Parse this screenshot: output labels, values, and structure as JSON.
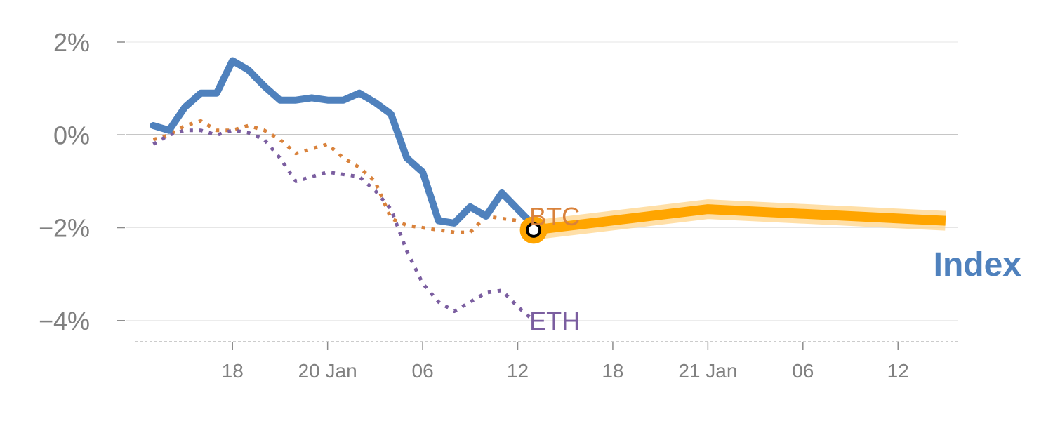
{
  "chart_data": {
    "type": "line",
    "title": "",
    "xlabel": "",
    "ylabel": "",
    "unit": "hour",
    "x_ticks": [
      {
        "x": 18,
        "label": "18"
      },
      {
        "x": 24,
        "label": "20 Jan"
      },
      {
        "x": 30,
        "label": "06"
      },
      {
        "x": 36,
        "label": "12"
      },
      {
        "x": 42,
        "label": "18"
      },
      {
        "x": 48,
        "label": "21 Jan"
      },
      {
        "x": 54,
        "label": "06"
      },
      {
        "x": 60,
        "label": "12"
      }
    ],
    "y_ticks": [
      {
        "v": 2,
        "label": "2%"
      },
      {
        "v": 0,
        "label": "0%"
      },
      {
        "v": -2,
        "label": "−2%"
      },
      {
        "v": -4,
        "label": "−4%"
      }
    ],
    "xlim": [
      11.3,
      63.8
    ],
    "ylim": [
      -4.23,
      2.0
    ],
    "zero_line": true,
    "grid": true,
    "series": [
      {
        "name": "BTC",
        "color": "#d9823b",
        "style": "dotted",
        "x": [
          13,
          14,
          15,
          16,
          17,
          18,
          19,
          20,
          21,
          22,
          23,
          24,
          25,
          26,
          27,
          28,
          29,
          30,
          31,
          32,
          33,
          34,
          35,
          36,
          37
        ],
        "y": [
          -0.1,
          0.0,
          0.2,
          0.3,
          0.1,
          0.1,
          0.2,
          0.1,
          -0.1,
          -0.4,
          -0.3,
          -0.2,
          -0.5,
          -0.7,
          -1.0,
          -1.8,
          -1.95,
          -2.0,
          -2.05,
          -2.1,
          -2.1,
          -1.75,
          -1.8,
          -1.85,
          -2.1
        ]
      },
      {
        "name": "ETH",
        "color": "#7b5ea0",
        "style": "dotted",
        "x": [
          13,
          14,
          15,
          16,
          17,
          18,
          19,
          20,
          21,
          22,
          23,
          24,
          25,
          26,
          27,
          28,
          29,
          30,
          31,
          32,
          33,
          34,
          35,
          36,
          37
        ],
        "y": [
          -0.2,
          0.0,
          0.1,
          0.1,
          0.0,
          0.1,
          0.05,
          -0.1,
          -0.5,
          -1.0,
          -0.9,
          -0.8,
          -0.85,
          -0.9,
          -1.2,
          -1.6,
          -2.5,
          -3.2,
          -3.6,
          -3.8,
          -3.6,
          -3.4,
          -3.35,
          -3.7,
          -4.0
        ]
      },
      {
        "name": "Index",
        "color": "#4f81bd",
        "style": "solid",
        "x": [
          13,
          14,
          15,
          16,
          17,
          18,
          19,
          20,
          21,
          22,
          23,
          24,
          25,
          26,
          27,
          28,
          29,
          30,
          31,
          32,
          33,
          34,
          35,
          36,
          37
        ],
        "y": [
          0.2,
          0.1,
          0.6,
          0.9,
          0.9,
          1.6,
          1.4,
          1.05,
          0.75,
          0.75,
          0.8,
          0.75,
          0.75,
          0.9,
          0.7,
          0.45,
          -0.5,
          -0.8,
          -1.85,
          -1.9,
          -1.55,
          -1.75,
          -1.25,
          -1.6,
          -1.95
        ]
      }
    ],
    "forecast": {
      "color": "#ffa500",
      "band_color": "#ffd48a",
      "x": [
        37,
        48,
        63
      ],
      "y": [
        -2.05,
        -1.6,
        -1.85
      ]
    },
    "marker": {
      "x": 37,
      "y": -2.05
    },
    "labels": {
      "btc": "BTC",
      "eth": "ETH",
      "index": "Index"
    }
  }
}
